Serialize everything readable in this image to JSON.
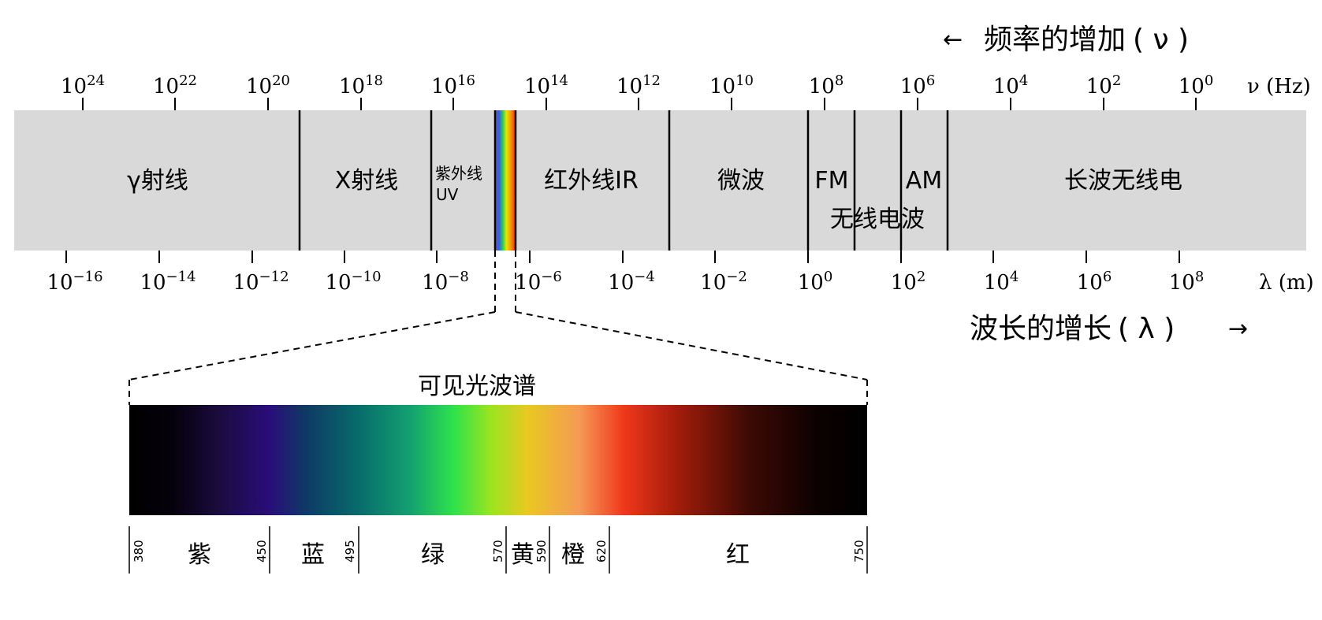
{
  "frequency_header": {
    "arrow": "←",
    "label": "频率的增加",
    "symbol": "( ν )"
  },
  "frequency_axis": {
    "unit": "ν (Hz)",
    "ticks": [
      {
        "base": "10",
        "exp": "24"
      },
      {
        "base": "10",
        "exp": "22"
      },
      {
        "base": "10",
        "exp": "20"
      },
      {
        "base": "10",
        "exp": "18"
      },
      {
        "base": "10",
        "exp": "16"
      },
      {
        "base": "10",
        "exp": "14"
      },
      {
        "base": "10",
        "exp": "12"
      },
      {
        "base": "10",
        "exp": "10"
      },
      {
        "base": "10",
        "exp": "8"
      },
      {
        "base": "10",
        "exp": "6"
      },
      {
        "base": "10",
        "exp": "4"
      },
      {
        "base": "10",
        "exp": "2"
      },
      {
        "base": "10",
        "exp": "0"
      }
    ]
  },
  "wavelength_axis": {
    "unit": "λ (m)",
    "ticks": [
      {
        "base": "10",
        "exp": "−16"
      },
      {
        "base": "10",
        "exp": "−14"
      },
      {
        "base": "10",
        "exp": "−12"
      },
      {
        "base": "10",
        "exp": "−10"
      },
      {
        "base": "10",
        "exp": "−8"
      },
      {
        "base": "10",
        "exp": "−6"
      },
      {
        "base": "10",
        "exp": "−4"
      },
      {
        "base": "10",
        "exp": "−2"
      },
      {
        "base": "10",
        "exp": "0"
      },
      {
        "base": "10",
        "exp": "2"
      },
      {
        "base": "10",
        "exp": "4"
      },
      {
        "base": "10",
        "exp": "6"
      },
      {
        "base": "10",
        "exp": "8"
      }
    ]
  },
  "wavelength_header": {
    "label": "波长的增长",
    "symbol": "( λ )",
    "arrow": "→"
  },
  "bands": {
    "gamma": "γ射线",
    "xray": "X射线",
    "uv_line1": "紫外线",
    "uv_line2": "UV",
    "infrared": "红外线IR",
    "microwave": "微波",
    "fm": "FM",
    "am": "AM",
    "radio": "无线电波",
    "longwave": "长波无线电"
  },
  "visible": {
    "title": "可见光波谱",
    "boundaries": [
      "380",
      "450",
      "495",
      "570",
      "590",
      "620",
      "750"
    ],
    "colors": [
      "紫",
      "蓝",
      "绿",
      "黄",
      "橙",
      "红"
    ]
  },
  "colors": {
    "band_fill": "#d9d9d9",
    "divider": "#000000"
  }
}
